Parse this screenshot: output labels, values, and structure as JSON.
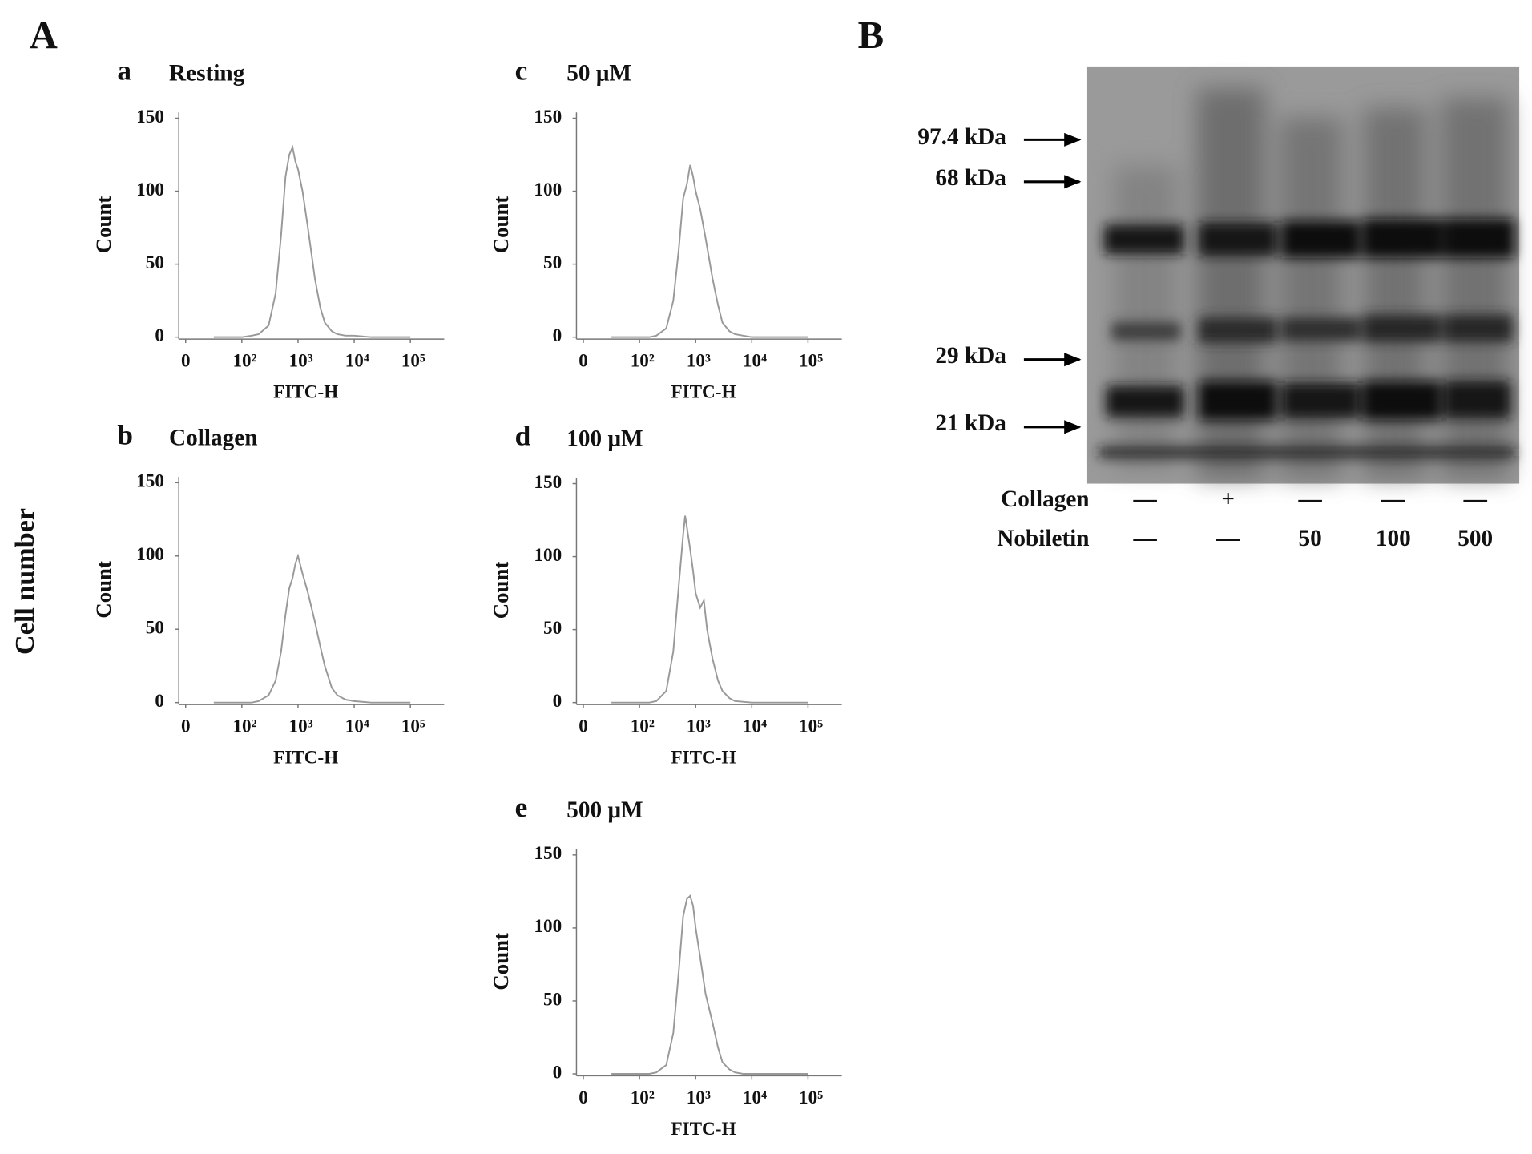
{
  "figure": {
    "label_a": "A",
    "label_b": "B",
    "y_title": "Cell number"
  },
  "chart_data": [
    {
      "type": "line",
      "panel": "a",
      "title": "Resting",
      "x_label": "FITC-H",
      "y_label": "Count",
      "color": "#999999",
      "x": [
        50,
        100,
        150,
        200,
        300,
        400,
        500,
        600,
        700,
        800,
        900,
        1000,
        1200,
        1500,
        2000,
        2500,
        3000,
        4000,
        5000,
        7000,
        10000,
        20000,
        50000,
        100000
      ],
      "values": [
        0,
        0,
        1,
        2,
        8,
        30,
        70,
        110,
        125,
        130,
        120,
        115,
        100,
        75,
        40,
        20,
        10,
        4,
        2,
        1,
        1,
        0,
        0,
        0
      ],
      "xlim": [
        0,
        400000
      ],
      "ylim": [
        0,
        154
      ],
      "xticks": [
        0,
        {
          "value": 100,
          "label": "10²"
        },
        {
          "value": 1000,
          "label": "10³"
        },
        {
          "value": 10000,
          "label": "10⁴"
        },
        {
          "value": 100000,
          "label": "10⁵"
        }
      ],
      "yticks": [
        0,
        50,
        100,
        150
      ]
    },
    {
      "type": "line",
      "panel": "c",
      "title": "50 μM",
      "x_label": "FITC-H",
      "y_label": "Count",
      "color": "#999999",
      "x": [
        50,
        100,
        150,
        200,
        300,
        400,
        500,
        600,
        700,
        800,
        900,
        1000,
        1200,
        1500,
        2000,
        2500,
        3000,
        4000,
        5000,
        7000,
        10000,
        20000,
        50000,
        100000
      ],
      "values": [
        0,
        0,
        0,
        1,
        6,
        25,
        60,
        95,
        105,
        118,
        110,
        100,
        88,
        68,
        40,
        22,
        10,
        4,
        2,
        1,
        0,
        0,
        0,
        0
      ],
      "xlim": [
        0,
        400000
      ],
      "ylim": [
        0,
        154
      ],
      "xticks": [
        0,
        {
          "value": 100,
          "label": "10²"
        },
        {
          "value": 1000,
          "label": "10³"
        },
        {
          "value": 10000,
          "label": "10⁴"
        },
        {
          "value": 100000,
          "label": "10⁵"
        }
      ],
      "yticks": [
        0,
        50,
        100,
        150
      ]
    },
    {
      "type": "line",
      "panel": "b",
      "title": "Collagen",
      "x_label": "FITC-H",
      "y_label": "Count",
      "color": "#999999",
      "x": [
        50,
        100,
        150,
        200,
        300,
        400,
        500,
        600,
        700,
        800,
        900,
        1000,
        1200,
        1500,
        2000,
        2500,
        3000,
        4000,
        5000,
        7000,
        10000,
        20000,
        50000,
        100000
      ],
      "values": [
        0,
        0,
        0,
        1,
        5,
        15,
        35,
        60,
        78,
        85,
        95,
        100,
        88,
        75,
        55,
        38,
        25,
        10,
        5,
        2,
        1,
        0,
        0,
        0
      ],
      "xlim": [
        0,
        400000
      ],
      "ylim": [
        0,
        154
      ],
      "xticks": [
        0,
        {
          "value": 100,
          "label": "10²"
        },
        {
          "value": 1000,
          "label": "10³"
        },
        {
          "value": 10000,
          "label": "10⁴"
        },
        {
          "value": 100000,
          "label": "10⁵"
        }
      ],
      "yticks": [
        0,
        50,
        100,
        150
      ]
    },
    {
      "type": "line",
      "panel": "d",
      "title": "100 μM",
      "x_label": "FITC-H",
      "y_label": "Count",
      "color": "#999999",
      "x": [
        50,
        100,
        150,
        200,
        300,
        400,
        500,
        600,
        650,
        700,
        800,
        900,
        1000,
        1200,
        1400,
        1600,
        2000,
        2500,
        3000,
        4000,
        5000,
        10000,
        50000,
        100000
      ],
      "values": [
        0,
        0,
        0,
        1,
        8,
        35,
        80,
        115,
        128,
        120,
        105,
        90,
        75,
        65,
        70,
        50,
        30,
        15,
        8,
        3,
        1,
        0,
        0,
        0
      ],
      "xlim": [
        0,
        400000
      ],
      "ylim": [
        0,
        154
      ],
      "xticks": [
        0,
        {
          "value": 100,
          "label": "10²"
        },
        {
          "value": 1000,
          "label": "10³"
        },
        {
          "value": 10000,
          "label": "10⁴"
        },
        {
          "value": 100000,
          "label": "10⁵"
        }
      ],
      "yticks": [
        0,
        50,
        100,
        150
      ]
    },
    {
      "type": "line",
      "panel": "e",
      "title": "500 μM",
      "x_label": "FITC-H",
      "y_label": "Count",
      "color": "#999999",
      "x": [
        50,
        100,
        150,
        200,
        300,
        400,
        500,
        600,
        700,
        800,
        900,
        1000,
        1200,
        1500,
        2000,
        2500,
        3000,
        4000,
        5000,
        7000,
        10000,
        20000,
        50000,
        100000
      ],
      "values": [
        0,
        0,
        0,
        1,
        6,
        28,
        70,
        108,
        120,
        122,
        115,
        100,
        80,
        55,
        35,
        18,
        8,
        3,
        1,
        0,
        0,
        0,
        0,
        0
      ],
      "xlim": [
        0,
        400000
      ],
      "ylim": [
        0,
        154
      ],
      "xticks": [
        0,
        {
          "value": 100,
          "label": "10²"
        },
        {
          "value": 1000,
          "label": "10³"
        },
        {
          "value": 10000,
          "label": "10⁴"
        },
        {
          "value": 100000,
          "label": "10⁵"
        }
      ],
      "yticks": [
        0,
        50,
        100,
        150
      ]
    }
  ],
  "blot": {
    "markers": [
      "97.4  kDa",
      "68  kDa",
      "29  kDa",
      "21  kDa"
    ],
    "rows": [
      {
        "name": "Collagen",
        "cells": [
          "—",
          "+",
          "—",
          "—",
          "—"
        ]
      },
      {
        "name": "Nobiletin",
        "cells": [
          "—",
          "—",
          50,
          100,
          500
        ]
      }
    ]
  }
}
